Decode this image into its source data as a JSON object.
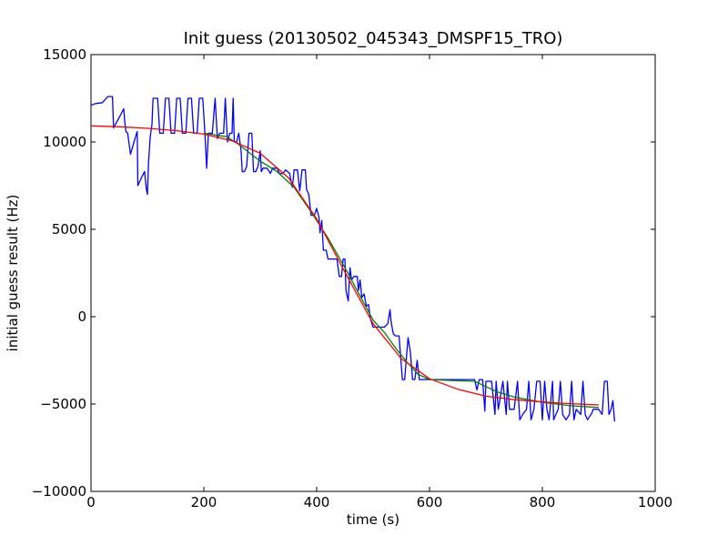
{
  "chart_data": {
    "type": "line",
    "title": "Init guess (20130502_045343_DMSPF15_TRO)",
    "xlabel": "time (s)",
    "ylabel": "initial guess result (Hz)",
    "xlim": [
      0,
      1000
    ],
    "ylim": [
      -10000,
      15000
    ],
    "x_ticks": [
      0,
      200,
      400,
      600,
      800,
      1000
    ],
    "x_tick_labels": [
      "0",
      "200",
      "400",
      "600",
      "800",
      "1000"
    ],
    "y_ticks": [
      -10000,
      -5000,
      0,
      5000,
      10000,
      15000
    ],
    "y_tick_labels": [
      "−10000",
      "−5000",
      "0",
      "5000",
      "10000",
      "15000"
    ],
    "grid": false,
    "legend": "none",
    "series": [
      {
        "color": "#0000ff",
        "points": [
          [
            0,
            12100
          ],
          [
            8,
            12200
          ],
          [
            20,
            12250
          ],
          [
            30,
            12600
          ],
          [
            38,
            12600
          ],
          [
            40,
            10800
          ],
          [
            50,
            11400
          ],
          [
            58,
            11900
          ],
          [
            60,
            11100
          ],
          [
            62,
            10600
          ],
          [
            65,
            10500
          ],
          [
            70,
            9300
          ],
          [
            78,
            10200
          ],
          [
            82,
            10600
          ],
          [
            83,
            7500
          ],
          [
            90,
            8000
          ],
          [
            95,
            8300
          ],
          [
            98,
            7300
          ],
          [
            100,
            7000
          ],
          [
            102,
            8800
          ],
          [
            105,
            10300
          ],
          [
            108,
            11000
          ],
          [
            110,
            12500
          ],
          [
            118,
            12500
          ],
          [
            122,
            10500
          ],
          [
            128,
            10500
          ],
          [
            132,
            12500
          ],
          [
            138,
            12500
          ],
          [
            142,
            10500
          ],
          [
            148,
            10500
          ],
          [
            152,
            12500
          ],
          [
            158,
            12500
          ],
          [
            162,
            10500
          ],
          [
            168,
            10500
          ],
          [
            172,
            12500
          ],
          [
            178,
            12500
          ],
          [
            182,
            10500
          ],
          [
            188,
            10500
          ],
          [
            192,
            12500
          ],
          [
            198,
            12500
          ],
          [
            202,
            10500
          ],
          [
            205,
            8500
          ],
          [
            208,
            10500
          ],
          [
            215,
            10500
          ],
          [
            220,
            12500
          ],
          [
            224,
            10200
          ],
          [
            228,
            10500
          ],
          [
            235,
            10500
          ],
          [
            238,
            12500
          ],
          [
            242,
            10000
          ],
          [
            246,
            10500
          ],
          [
            250,
            10500
          ],
          [
            252,
            12500
          ],
          [
            254,
            10000
          ],
          [
            258,
            10000
          ],
          [
            262,
            10500
          ],
          [
            266,
            9500
          ],
          [
            268,
            8300
          ],
          [
            272,
            8300
          ],
          [
            276,
            8600
          ],
          [
            280,
            10500
          ],
          [
            285,
            10500
          ],
          [
            288,
            8300
          ],
          [
            292,
            8300
          ],
          [
            296,
            8600
          ],
          [
            300,
            9500
          ],
          [
            302,
            8300
          ],
          [
            305,
            8500
          ],
          [
            312,
            8500
          ],
          [
            318,
            8200
          ],
          [
            322,
            8500
          ],
          [
            330,
            8500
          ],
          [
            334,
            8200
          ],
          [
            340,
            8200
          ],
          [
            345,
            8400
          ],
          [
            352,
            8200
          ],
          [
            357,
            7400
          ],
          [
            360,
            8400
          ],
          [
            366,
            8400
          ],
          [
            370,
            7200
          ],
          [
            374,
            8400
          ],
          [
            380,
            8400
          ],
          [
            382,
            7300
          ],
          [
            386,
            7000
          ],
          [
            390,
            5800
          ],
          [
            396,
            5800
          ],
          [
            400,
            6200
          ],
          [
            404,
            5700
          ],
          [
            406,
            4800
          ],
          [
            409,
            5500
          ],
          [
            412,
            3800
          ],
          [
            417,
            3800
          ],
          [
            420,
            3300
          ],
          [
            436,
            3300
          ],
          [
            440,
            2300
          ],
          [
            444,
            2300
          ],
          [
            447,
            3300
          ],
          [
            450,
            3300
          ],
          [
            452,
            1500
          ],
          [
            456,
            900
          ],
          [
            459,
            2800
          ],
          [
            462,
            2100
          ],
          [
            466,
            2300
          ],
          [
            472,
            2300
          ],
          [
            474,
            1500
          ],
          [
            477,
            2100
          ],
          [
            480,
            1100
          ],
          [
            484,
            1300
          ],
          [
            488,
            600
          ],
          [
            492,
            700
          ],
          [
            495,
            -100
          ],
          [
            500,
            -600
          ],
          [
            520,
            -600
          ],
          [
            526,
            -400
          ],
          [
            530,
            400
          ],
          [
            532,
            -300
          ],
          [
            536,
            -1000
          ],
          [
            540,
            -1100
          ],
          [
            546,
            -1100
          ],
          [
            552,
            -3600
          ],
          [
            556,
            -3600
          ],
          [
            562,
            -1200
          ],
          [
            566,
            -2000
          ],
          [
            570,
            -3600
          ],
          [
            574,
            -3600
          ],
          [
            578,
            -2500
          ],
          [
            582,
            -3600
          ],
          [
            586,
            -3600
          ],
          [
            600,
            -3600
          ],
          [
            640,
            -3600
          ],
          [
            680,
            -3600
          ],
          [
            684,
            -4200
          ],
          [
            688,
            -3600
          ],
          [
            694,
            -3600
          ],
          [
            698,
            -5400
          ],
          [
            700,
            -3700
          ],
          [
            710,
            -3700
          ],
          [
            716,
            -5600
          ],
          [
            718,
            -3700
          ],
          [
            722,
            -5300
          ],
          [
            730,
            -3700
          ],
          [
            736,
            -5600
          ],
          [
            738,
            -3700
          ],
          [
            742,
            -5300
          ],
          [
            750,
            -5300
          ],
          [
            756,
            -3700
          ],
          [
            760,
            -5900
          ],
          [
            765,
            -5600
          ],
          [
            772,
            -5300
          ],
          [
            776,
            -3700
          ],
          [
            780,
            -5900
          ],
          [
            785,
            -5300
          ],
          [
            790,
            -3700
          ],
          [
            796,
            -3700
          ],
          [
            800,
            -5900
          ],
          [
            804,
            -3700
          ],
          [
            808,
            -5300
          ],
          [
            812,
            -5900
          ],
          [
            818,
            -3700
          ],
          [
            820,
            -5900
          ],
          [
            828,
            -5300
          ],
          [
            832,
            -3700
          ],
          [
            836,
            -5600
          ],
          [
            842,
            -5900
          ],
          [
            848,
            -5600
          ],
          [
            852,
            -3700
          ],
          [
            856,
            -5900
          ],
          [
            860,
            -5300
          ],
          [
            868,
            -5600
          ],
          [
            872,
            -3700
          ],
          [
            876,
            -5600
          ],
          [
            880,
            -5900
          ],
          [
            888,
            -5500
          ],
          [
            890,
            -5300
          ],
          [
            895,
            -5300
          ],
          [
            900,
            -5300
          ],
          [
            906,
            -5600
          ],
          [
            910,
            -3700
          ],
          [
            915,
            -3700
          ],
          [
            918,
            -5600
          ],
          [
            922,
            -5300
          ],
          [
            925,
            -4800
          ],
          [
            928,
            -6000
          ]
        ]
      },
      {
        "color": "#008000",
        "points": [
          [
            200,
            10500
          ],
          [
            240,
            10300
          ],
          [
            260,
            9900
          ],
          [
            280,
            9400
          ],
          [
            300,
            8900
          ],
          [
            330,
            8300
          ],
          [
            360,
            7400
          ],
          [
            390,
            6000
          ],
          [
            420,
            4500
          ],
          [
            450,
            2800
          ],
          [
            480,
            1000
          ],
          [
            500,
            -200
          ],
          [
            520,
            -900
          ],
          [
            540,
            -1800
          ],
          [
            560,
            -2600
          ],
          [
            580,
            -3300
          ],
          [
            600,
            -3600
          ],
          [
            640,
            -3650
          ],
          [
            680,
            -3700
          ],
          [
            700,
            -4000
          ],
          [
            720,
            -4300
          ],
          [
            750,
            -4600
          ],
          [
            800,
            -4900
          ],
          [
            850,
            -5100
          ],
          [
            900,
            -5200
          ]
        ]
      },
      {
        "color": "#ff0000",
        "points": [
          [
            0,
            10920
          ],
          [
            50,
            10870
          ],
          [
            100,
            10780
          ],
          [
            150,
            10650
          ],
          [
            200,
            10450
          ],
          [
            250,
            10070
          ],
          [
            300,
            9350
          ],
          [
            350,
            7950
          ],
          [
            400,
            5600
          ],
          [
            450,
            2550
          ],
          [
            500,
            -400
          ],
          [
            550,
            -2400
          ],
          [
            600,
            -3550
          ],
          [
            650,
            -4150
          ],
          [
            700,
            -4550
          ],
          [
            750,
            -4750
          ],
          [
            800,
            -4880
          ],
          [
            850,
            -4980
          ],
          [
            900,
            -5050
          ]
        ]
      }
    ]
  }
}
